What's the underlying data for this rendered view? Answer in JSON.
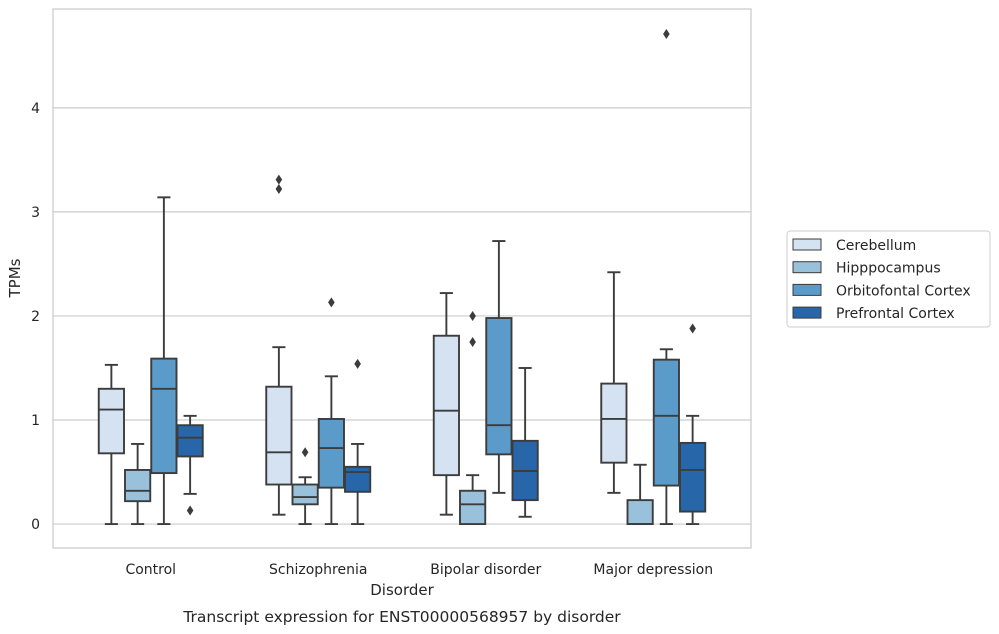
{
  "chart_data": {
    "type": "box",
    "caption": "Transcript expression for ENST00000568957 by disorder",
    "xlabel": "Disorder",
    "ylabel": "TPMs",
    "ylim": [
      -0.23,
      4.95
    ],
    "yticks": [
      0,
      1,
      2,
      3,
      4
    ],
    "ytick_labels": [
      "0",
      "1",
      "2",
      "3",
      "4"
    ],
    "grid": "horizontal",
    "legend_position": "right",
    "categories": [
      "Control",
      "Schizophrenia",
      "Bipolar disorder",
      "Major depression"
    ],
    "series": [
      {
        "name": "Cerebellum",
        "color": "#d4e2f1",
        "boxes": [
          {
            "whislo": 0.0,
            "q1": 0.68,
            "med": 1.1,
            "q3": 1.3,
            "whishi": 1.53,
            "fliers": []
          },
          {
            "whislo": 0.09,
            "q1": 0.38,
            "med": 0.69,
            "q3": 1.32,
            "whishi": 1.7,
            "fliers": [
              3.22,
              3.31
            ]
          },
          {
            "whislo": 0.09,
            "q1": 0.47,
            "med": 1.09,
            "q3": 1.81,
            "whishi": 2.22,
            "fliers": []
          },
          {
            "whislo": 0.3,
            "q1": 0.59,
            "med": 1.01,
            "q3": 1.35,
            "whishi": 2.42,
            "fliers": []
          }
        ]
      },
      {
        "name": "Hipppocampus",
        "color": "#9ac1dc",
        "boxes": [
          {
            "whislo": 0.0,
            "q1": 0.22,
            "med": 0.32,
            "q3": 0.52,
            "whishi": 0.77,
            "fliers": []
          },
          {
            "whislo": 0.0,
            "q1": 0.19,
            "med": 0.26,
            "q3": 0.38,
            "whishi": 0.45,
            "fliers": [
              0.69
            ]
          },
          {
            "whislo": 0.0,
            "q1": 0.0,
            "med": 0.19,
            "q3": 0.32,
            "whishi": 0.47,
            "fliers": [
              1.75,
              2.0
            ]
          },
          {
            "whislo": 0.0,
            "q1": 0.0,
            "med": 0.0,
            "q3": 0.23,
            "whishi": 0.57,
            "fliers": []
          }
        ]
      },
      {
        "name": "Orbitofontal Cortex",
        "color": "#5b9bc9",
        "boxes": [
          {
            "whislo": 0.0,
            "q1": 0.49,
            "med": 1.3,
            "q3": 1.59,
            "whishi": 3.14,
            "fliers": []
          },
          {
            "whislo": 0.0,
            "q1": 0.35,
            "med": 0.73,
            "q3": 1.01,
            "whishi": 1.42,
            "fliers": [
              2.13
            ]
          },
          {
            "whislo": 0.3,
            "q1": 0.67,
            "med": 0.95,
            "q3": 1.98,
            "whishi": 2.72,
            "fliers": []
          },
          {
            "whislo": 0.0,
            "q1": 0.37,
            "med": 1.04,
            "q3": 1.58,
            "whishi": 1.68,
            "fliers": [
              4.71
            ]
          }
        ]
      },
      {
        "name": "Prefrontal Cortex",
        "color": "#2766a8",
        "boxes": [
          {
            "whislo": 0.29,
            "q1": 0.65,
            "med": 0.83,
            "q3": 0.95,
            "whishi": 1.04,
            "fliers": [
              0.13
            ]
          },
          {
            "whislo": 0.0,
            "q1": 0.31,
            "med": 0.5,
            "q3": 0.55,
            "whishi": 0.77,
            "fliers": [
              1.54
            ]
          },
          {
            "whislo": 0.07,
            "q1": 0.23,
            "med": 0.51,
            "q3": 0.8,
            "whishi": 1.5,
            "fliers": []
          },
          {
            "whislo": 0.0,
            "q1": 0.12,
            "med": 0.52,
            "q3": 0.78,
            "whishi": 1.04,
            "fliers": [
              1.88
            ]
          }
        ]
      }
    ]
  }
}
